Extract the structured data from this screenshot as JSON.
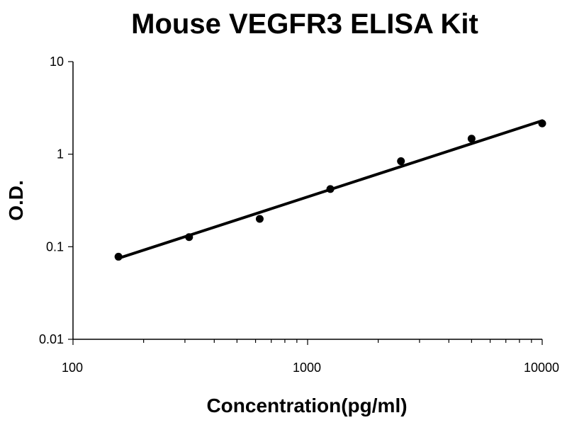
{
  "chart_data": {
    "type": "scatter",
    "title": "Mouse VEGFR3 ELISA Kit",
    "xlabel": "Concentration(pg/ml)",
    "ylabel": "O.D.",
    "x_scale": "log",
    "y_scale": "log",
    "xlim": [
      100,
      10000
    ],
    "ylim": [
      0.01,
      10
    ],
    "x_tick_labels": [
      "100",
      "1000",
      "10000"
    ],
    "y_tick_labels": [
      "0.01",
      "0.1",
      "1",
      "10"
    ],
    "grid": false,
    "legend": "none",
    "series": [
      {
        "points": [
          {
            "x": 156.25,
            "y": 0.078
          },
          {
            "x": 312.5,
            "y": 0.127
          },
          {
            "x": 625,
            "y": 0.2
          },
          {
            "x": 1250,
            "y": 0.42
          },
          {
            "x": 2500,
            "y": 0.84
          },
          {
            "x": 5000,
            "y": 1.47
          },
          {
            "x": 10000,
            "y": 2.15
          }
        ]
      }
    ],
    "trendline": {
      "type": "power",
      "start": {
        "x": 156.25,
        "y": 0.075
      },
      "end": {
        "x": 10000,
        "y": 2.3
      }
    }
  }
}
